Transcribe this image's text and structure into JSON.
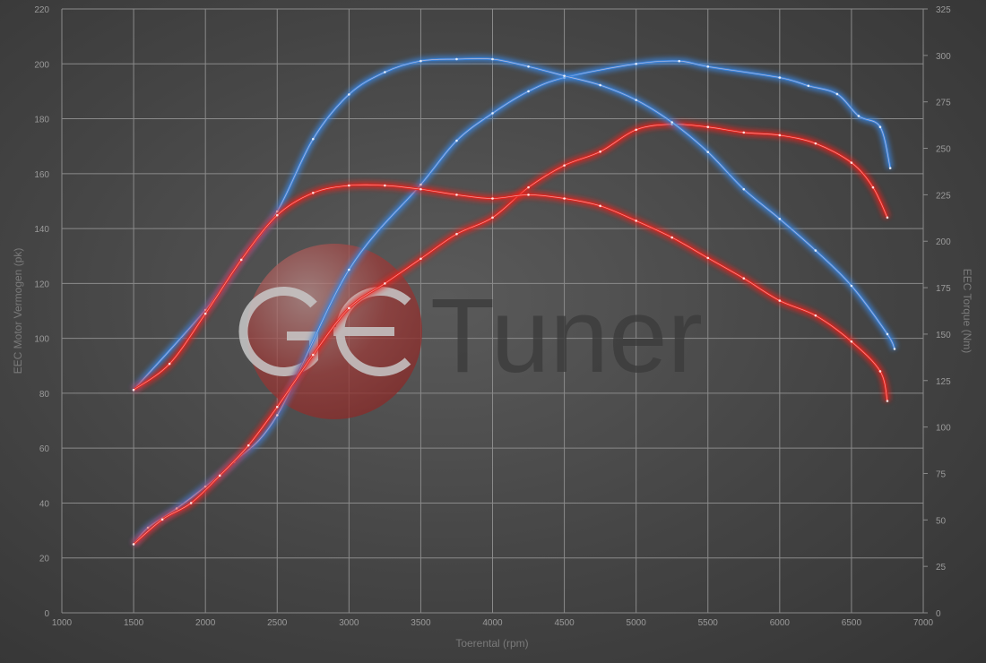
{
  "chart_data": {
    "type": "line",
    "xlabel": "Toerental (rpm)",
    "ylabel": "EEC Motor Vermogen (pk)",
    "y2label": "EEC Torque (Nm)",
    "xlim": [
      1000,
      7000
    ],
    "ylim": [
      0,
      220
    ],
    "y2lim": [
      0,
      325
    ],
    "xticks": [
      1000,
      1500,
      2000,
      2500,
      3000,
      3500,
      4000,
      4500,
      5000,
      5500,
      6000,
      6500,
      7000
    ],
    "yticks": [
      0,
      20,
      40,
      60,
      80,
      100,
      120,
      140,
      160,
      180,
      200,
      220
    ],
    "y2ticks": [
      0,
      25,
      50,
      75,
      100,
      125,
      150,
      175,
      200,
      225,
      250,
      275,
      300,
      325
    ],
    "grid": true,
    "colors": {
      "tuned": "#3a86e0",
      "stock": "#e8241e"
    },
    "watermark": "GE Tuner",
    "series": [
      {
        "axis": "left",
        "color": "#3a86e0",
        "x": [
          1500,
          1600,
          1800,
          2000,
          2200,
          2500,
          3000,
          3500,
          3750,
          4000,
          4250,
          4500,
          5000,
          5300,
          5500,
          6000,
          6200,
          6400,
          6550,
          6700,
          6770
        ],
        "y": [
          25,
          31,
          38,
          46,
          55,
          72,
          125,
          156,
          172,
          182,
          190,
          195,
          200,
          201,
          199,
          195,
          192,
          189,
          181,
          177,
          162
        ]
      },
      {
        "axis": "left",
        "color": "#e8241e",
        "x": [
          1500,
          1700,
          1900,
          2100,
          2300,
          2500,
          2750,
          3000,
          3250,
          3500,
          3750,
          4000,
          4250,
          4500,
          4750,
          5000,
          5250,
          5500,
          5750,
          6000,
          6250,
          6500,
          6650,
          6750
        ],
        "y": [
          25,
          34,
          40,
          50,
          61,
          75,
          94,
          111,
          120,
          129,
          138,
          144,
          155,
          163,
          168,
          176,
          178,
          177,
          175,
          174,
          171,
          164,
          155,
          144
        ]
      },
      {
        "axis": "right",
        "color": "#3a86e0",
        "x": [
          1500,
          2000,
          2250,
          2500,
          2750,
          3000,
          3250,
          3500,
          3750,
          4000,
          4250,
          4500,
          4750,
          5000,
          5250,
          5500,
          5750,
          6000,
          6250,
          6500,
          6750,
          6800
        ],
        "y": [
          120,
          163,
          190,
          216,
          255,
          279,
          291,
          297,
          298,
          298,
          294,
          289,
          284,
          276,
          264,
          248,
          228,
          212,
          195,
          176,
          150,
          142
        ]
      },
      {
        "axis": "right",
        "color": "#e8241e",
        "x": [
          1500,
          1750,
          2000,
          2250,
          2500,
          2750,
          3000,
          3250,
          3500,
          3750,
          4000,
          4250,
          4500,
          4750,
          5000,
          5250,
          5500,
          5750,
          6000,
          6250,
          6500,
          6700,
          6750
        ],
        "y": [
          120,
          134,
          161,
          190,
          214,
          226,
          230,
          230,
          228,
          225,
          223,
          225,
          223,
          219,
          211,
          202,
          191,
          180,
          168,
          160,
          146,
          130,
          114
        ]
      }
    ]
  }
}
